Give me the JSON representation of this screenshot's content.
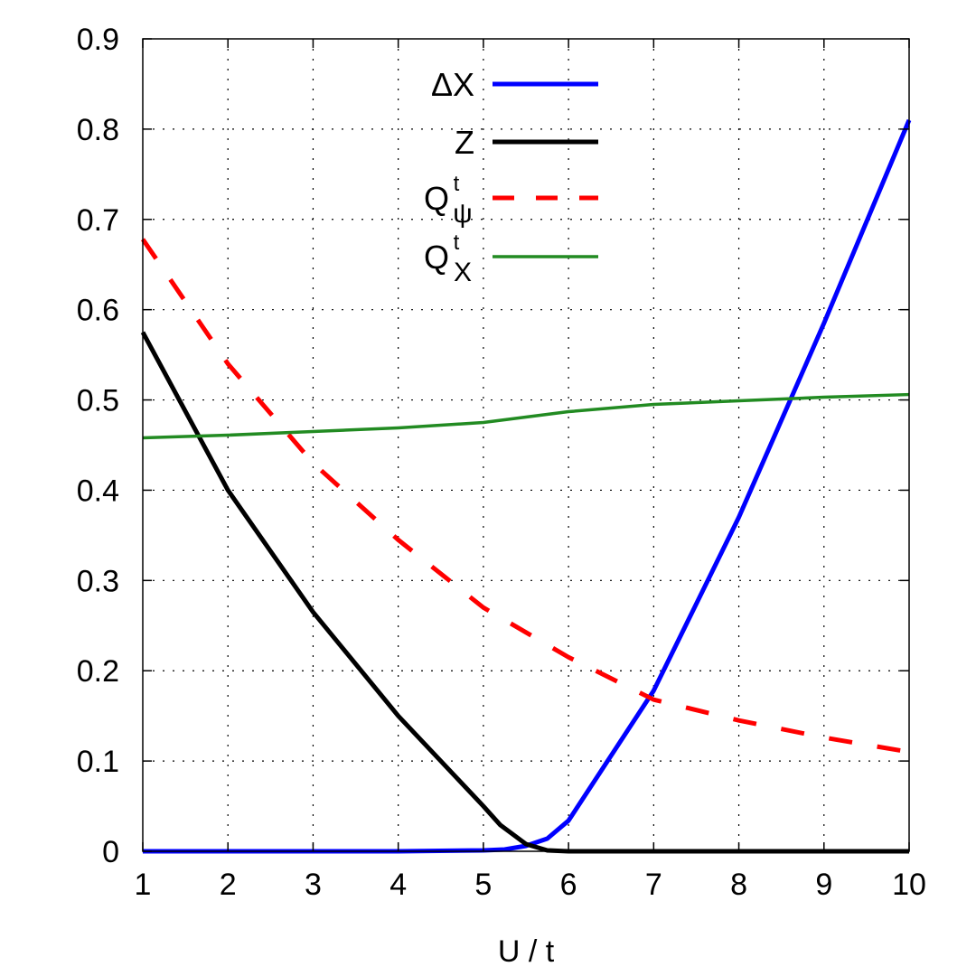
{
  "chart_data": {
    "type": "line",
    "title": "",
    "xlabel": "U / t",
    "ylabel": "",
    "xlim": [
      1,
      10
    ],
    "ylim": [
      0,
      0.9
    ],
    "x_ticks": [
      "1",
      "2",
      "3",
      "4",
      "5",
      "6",
      "7",
      "8",
      "9",
      "10"
    ],
    "y_ticks": [
      "0",
      "0.1",
      "0.2",
      "0.3",
      "0.4",
      "0.5",
      "0.6",
      "0.7",
      "0.8",
      "0.9"
    ],
    "grid": true,
    "legend_position": "top-center",
    "series": [
      {
        "name": "ΔX",
        "label": {
          "main": "ΔX",
          "sup": "",
          "sub": ""
        },
        "color": "#0000ff",
        "style": "solid",
        "x": [
          1,
          2,
          3,
          4,
          5,
          5.25,
          5.5,
          5.75,
          6,
          7,
          8,
          9,
          10
        ],
        "y": [
          0,
          0,
          0,
          0,
          0.001,
          0.002,
          0.006,
          0.014,
          0.034,
          0.178,
          0.37,
          0.585,
          0.81
        ]
      },
      {
        "name": "Z",
        "label": {
          "main": "Z",
          "sup": "",
          "sub": ""
        },
        "color": "#000000",
        "style": "solid",
        "x": [
          1,
          2,
          3,
          4,
          5,
          5.2,
          5.5,
          5.75,
          6,
          7,
          8,
          9,
          10
        ],
        "y": [
          0.575,
          0.4,
          0.265,
          0.15,
          0.05,
          0.029,
          0.008,
          0.001,
          0,
          0,
          0,
          0,
          0
        ]
      },
      {
        "name": "Qψt",
        "label": {
          "main": "Q",
          "sup": "t",
          "sub": "ψ"
        },
        "color": "#ff0000",
        "style": "dashed",
        "x": [
          1,
          2,
          3,
          4,
          5,
          6,
          7,
          8,
          9,
          10
        ],
        "y": [
          0.678,
          0.54,
          0.43,
          0.345,
          0.27,
          0.215,
          0.168,
          0.145,
          0.126,
          0.11
        ]
      },
      {
        "name": "QXt",
        "label": {
          "main": "Q",
          "sup": "t",
          "sub": "X"
        },
        "color": "#228b22",
        "style": "solid",
        "x": [
          1,
          2,
          3,
          4,
          5,
          6,
          7,
          8,
          9,
          10
        ],
        "y": [
          0.458,
          0.461,
          0.465,
          0.469,
          0.475,
          0.487,
          0.495,
          0.499,
          0.503,
          0.506
        ]
      }
    ]
  }
}
